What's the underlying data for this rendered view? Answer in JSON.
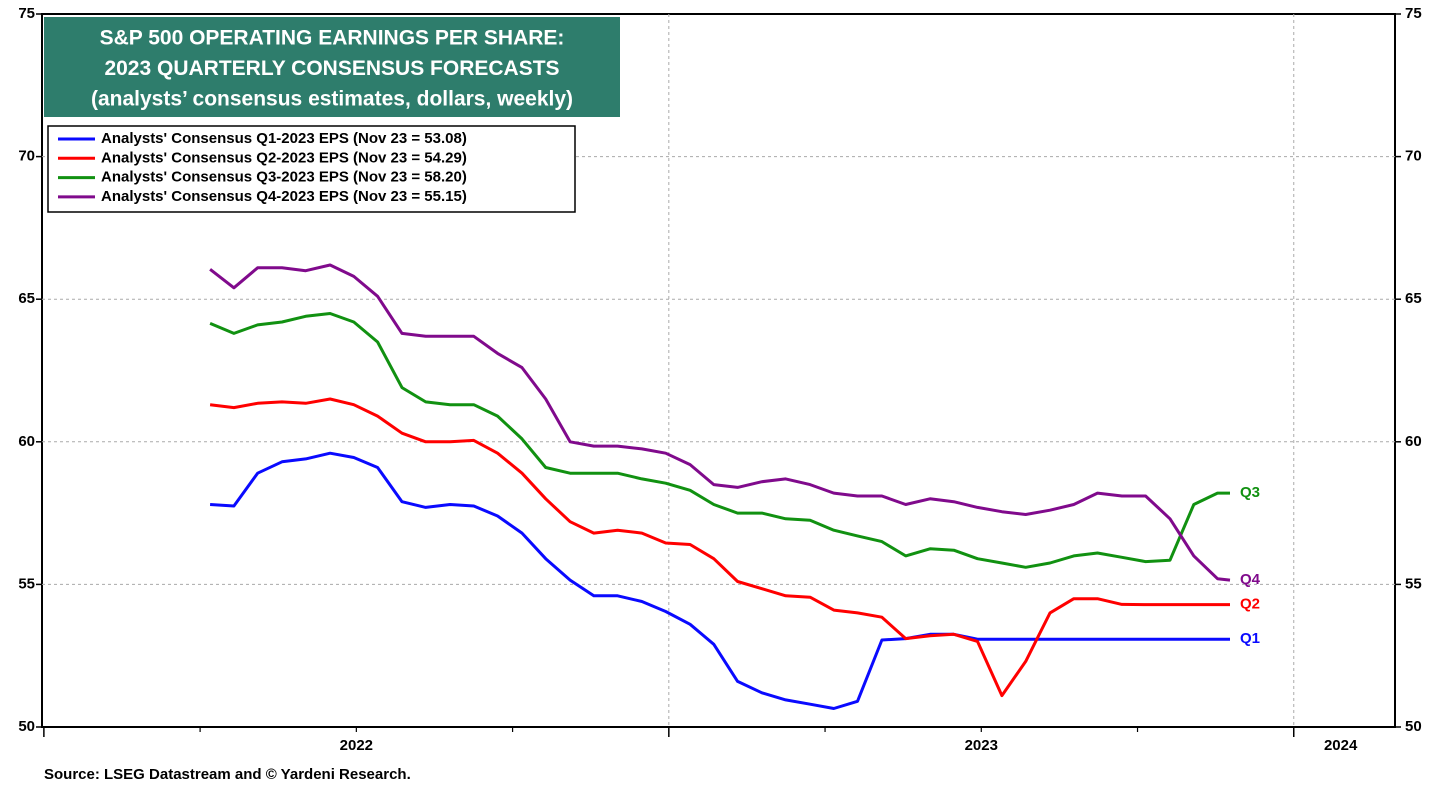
{
  "chart_data": {
    "type": "line",
    "title": [
      "S&P 500 OPERATING EARNINGS PER SHARE:",
      "2023 QUARTERLY CONSENSUS FORECASTS",
      "(analysts’ consensus estimates, dollars, weekly)"
    ],
    "title_box_color": "#2e7d6c",
    "source": "Source: LSEG Datastream and © Yardeni Research.",
    "x": [
      2022.266,
      2022.304,
      2022.342,
      2022.381,
      2022.419,
      2022.458,
      2022.496,
      2022.534,
      2022.573,
      2022.611,
      2022.65,
      2022.688,
      2022.726,
      2022.765,
      2022.803,
      2022.842,
      2022.88,
      2022.918,
      2022.957,
      2022.995,
      2023.034,
      2023.072,
      2023.11,
      2023.149,
      2023.187,
      2023.226,
      2023.264,
      2023.302,
      2023.341,
      2023.379,
      2023.418,
      2023.456,
      2023.494,
      2023.533,
      2023.571,
      2023.61,
      2023.648,
      2023.686,
      2023.725,
      2023.763,
      2023.802,
      2023.84,
      2023.878,
      2023.898
    ],
    "series": [
      {
        "name": "Analysts' Consensus Q1-2023 EPS (Nov 23 = 53.08)",
        "end_label": "Q1",
        "color": "#0a0aff",
        "values": [
          57.8,
          57.75,
          58.9,
          59.3,
          59.4,
          59.6,
          59.45,
          59.1,
          57.9,
          57.7,
          57.8,
          57.75,
          57.4,
          56.8,
          55.9,
          55.15,
          54.6,
          54.6,
          54.4,
          54.05,
          53.6,
          52.9,
          51.6,
          51.2,
          50.95,
          50.8,
          50.65,
          50.9,
          53.05,
          53.1,
          53.25,
          53.25,
          53.08,
          53.08,
          53.08,
          53.08,
          53.08,
          53.08,
          53.08,
          53.08,
          53.08,
          53.08,
          53.08,
          53.08
        ]
      },
      {
        "name": "Analysts' Consensus Q2-2023 EPS (Nov 23 = 54.29)",
        "end_label": "Q2",
        "color": "#ff0000",
        "values": [
          61.3,
          61.2,
          61.35,
          61.4,
          61.35,
          61.5,
          61.3,
          60.9,
          60.3,
          60.0,
          60.0,
          60.05,
          59.6,
          58.9,
          58.0,
          57.2,
          56.8,
          56.9,
          56.8,
          56.45,
          56.4,
          55.9,
          55.1,
          54.85,
          54.6,
          54.55,
          54.1,
          54.0,
          53.85,
          53.1,
          53.2,
          53.25,
          53.0,
          51.1,
          52.3,
          54.0,
          54.5,
          54.5,
          54.3,
          54.29,
          54.29,
          54.29,
          54.29,
          54.29
        ]
      },
      {
        "name": "Analysts' Consensus Q3-2023 EPS (Nov 23 = 58.20)",
        "end_label": "Q3",
        "color": "#119111",
        "values": [
          64.15,
          63.8,
          64.1,
          64.2,
          64.4,
          64.5,
          64.2,
          63.5,
          61.9,
          61.4,
          61.3,
          61.3,
          60.9,
          60.1,
          59.1,
          58.9,
          58.9,
          58.9,
          58.7,
          58.55,
          58.3,
          57.8,
          57.5,
          57.5,
          57.3,
          57.25,
          56.9,
          56.7,
          56.5,
          56.0,
          56.25,
          56.2,
          55.9,
          55.75,
          55.6,
          55.75,
          56.0,
          56.1,
          55.95,
          55.8,
          55.85,
          57.8,
          58.2,
          58.2
        ]
      },
      {
        "name": "Analysts' Consensus Q4-2023 EPS (Nov 23 = 55.15)",
        "end_label": "Q4",
        "color": "#800a8c",
        "values": [
          66.05,
          65.4,
          66.1,
          66.1,
          66.0,
          66.2,
          65.8,
          65.1,
          63.8,
          63.7,
          63.7,
          63.7,
          63.1,
          62.6,
          61.5,
          60.0,
          59.85,
          59.85,
          59.75,
          59.6,
          59.2,
          58.5,
          58.4,
          58.6,
          58.7,
          58.5,
          58.2,
          58.1,
          58.1,
          57.8,
          58.0,
          57.9,
          57.7,
          57.55,
          57.45,
          57.6,
          57.8,
          58.2,
          58.1,
          58.1,
          57.3,
          56.0,
          55.2,
          55.15
        ]
      }
    ],
    "xlim": [
      2021.997,
      2024.162
    ],
    "xticks": [
      {
        "value": 2022.5,
        "label": "2022"
      },
      {
        "value": 2023.5,
        "label": "2023"
      },
      {
        "value": 2024.075,
        "label": "2024"
      }
    ],
    "year_boundaries": [
      2022,
      2023,
      2024
    ],
    "quarter_ticks": [
      2022.25,
      2022.5,
      2022.75,
      2023.25,
      2023.5,
      2023.75
    ],
    "ylim": [
      50,
      75
    ],
    "yticks": [
      50,
      55,
      60,
      65,
      70,
      75
    ],
    "y2lim": [
      50,
      75
    ],
    "y2ticks": [
      50,
      55,
      60,
      65,
      70,
      75
    ],
    "grid": true,
    "legend": "top-left"
  }
}
